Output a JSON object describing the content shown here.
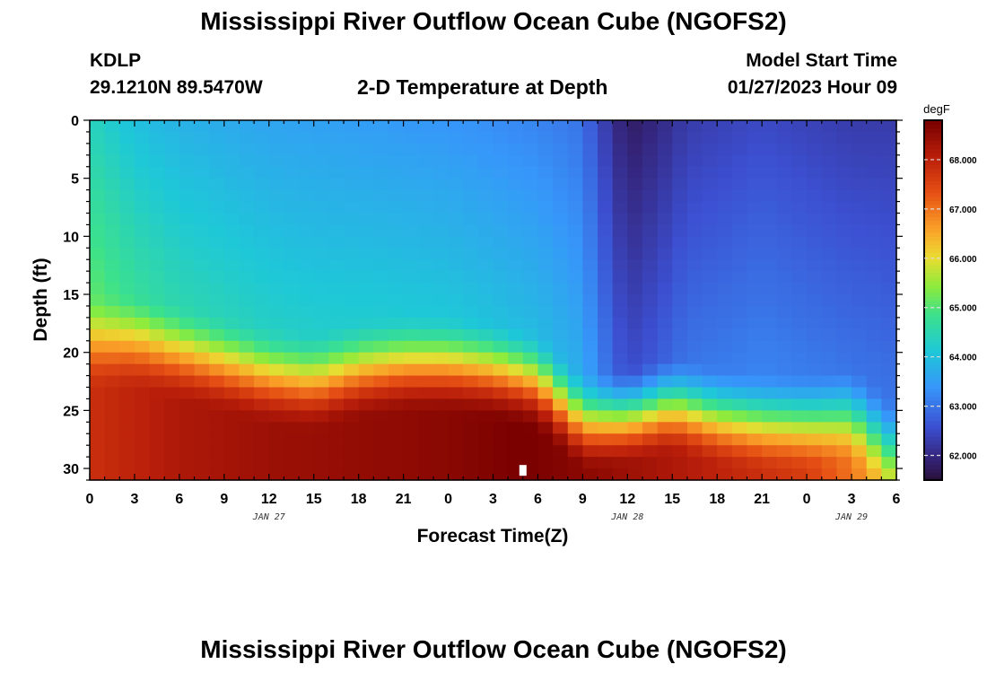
{
  "page": {
    "title": "Mississippi River Outflow Ocean Cube (NGOFS2)",
    "bottom_title": "Mississippi River Outflow Ocean Cube (NGOFS2)",
    "station": "KDLP",
    "coords": "29.1210N  89.5470W",
    "subtitle": "2-D Temperature at Depth",
    "model_label": "Model Start Time",
    "model_time": "01/27/2023 Hour 09"
  },
  "chart_data": {
    "type": "heatmap",
    "title": "2-D Temperature at Depth",
    "xlabel": "Forecast Time(Z)",
    "ylabel": "Depth (ft)",
    "units": "degF",
    "x_ticks": [
      "0",
      "3",
      "6",
      "9",
      "12",
      "15",
      "18",
      "21",
      "0",
      "3",
      "6",
      "9",
      "12",
      "15",
      "18",
      "21",
      "0",
      "3",
      "6"
    ],
    "date_labels": [
      {
        "label": "JAN 27",
        "hour": 12
      },
      {
        "label": "JAN 28",
        "hour": 36
      },
      {
        "label": "JAN 29",
        "hour": 51
      }
    ],
    "xlim_hours": [
      0,
      54
    ],
    "y_ticks": [
      0,
      5,
      10,
      15,
      20,
      25,
      30
    ],
    "ylim_ft": [
      0,
      31
    ],
    "y_inverted": true,
    "colorbar": {
      "label": "degF",
      "ticks": [
        "68.000",
        "67.000",
        "66.000",
        "65.000",
        "64.000",
        "63.000",
        "62.000"
      ],
      "tick_values": [
        68,
        67,
        66,
        65,
        64,
        63,
        62
      ],
      "range": [
        61.5,
        68.8
      ]
    },
    "surface_temp_by_hour": [
      [
        0,
        64.4
      ],
      [
        3,
        64.0
      ],
      [
        6,
        63.8
      ],
      [
        9,
        63.7
      ],
      [
        12,
        63.6
      ],
      [
        18,
        63.5
      ],
      [
        24,
        63.4
      ],
      [
        30,
        63.2
      ],
      [
        33,
        63.0
      ],
      [
        34,
        62.5
      ],
      [
        36,
        61.8
      ],
      [
        38,
        62.0
      ],
      [
        40,
        62.3
      ],
      [
        45,
        62.5
      ],
      [
        48,
        62.4
      ],
      [
        51,
        62.3
      ],
      [
        54,
        62.3
      ]
    ],
    "thermocline_depth_ft_by_hour": [
      [
        0,
        15.5
      ],
      [
        3,
        15.5
      ],
      [
        6,
        16.5
      ],
      [
        9,
        17.5
      ],
      [
        12,
        18.5
      ],
      [
        15,
        19.0
      ],
      [
        18,
        18.0
      ],
      [
        21,
        17.5
      ],
      [
        24,
        17.5
      ],
      [
        27,
        18.0
      ],
      [
        30,
        19.0
      ],
      [
        33,
        22.5
      ],
      [
        36,
        22.0
      ],
      [
        39,
        21.0
      ],
      [
        42,
        22.0
      ],
      [
        45,
        22.5
      ],
      [
        48,
        22.5
      ],
      [
        51,
        22.0
      ],
      [
        54,
        25.0
      ]
    ],
    "bottom_temp_by_hour": [
      [
        0,
        67.8
      ],
      [
        6,
        68.2
      ],
      [
        12,
        68.4
      ],
      [
        18,
        68.5
      ],
      [
        24,
        68.6
      ],
      [
        29,
        68.8
      ],
      [
        33,
        68.6
      ],
      [
        36,
        68.4
      ],
      [
        42,
        68.0
      ],
      [
        48,
        67.6
      ],
      [
        51,
        67.0
      ],
      [
        54,
        66.0
      ]
    ]
  }
}
